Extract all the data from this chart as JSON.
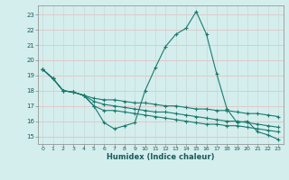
{
  "xlabel": "Humidex (Indice chaleur)",
  "background_color": "#d4eeed",
  "grid_color_major": "#c8a0a0",
  "grid_color_minor": "#c8d8d8",
  "line_color": "#1a7a6e",
  "xlim": [
    -0.5,
    23.5
  ],
  "ylim": [
    14.5,
    23.6
  ],
  "yticks": [
    15,
    16,
    17,
    18,
    19,
    20,
    21,
    22,
    23
  ],
  "xticks": [
    0,
    1,
    2,
    3,
    4,
    5,
    6,
    7,
    8,
    9,
    10,
    11,
    12,
    13,
    14,
    15,
    16,
    17,
    18,
    19,
    20,
    21,
    22,
    23
  ],
  "series": [
    [
      19.4,
      18.8,
      18.0,
      17.9,
      17.7,
      17.0,
      15.9,
      15.5,
      15.7,
      15.9,
      18.0,
      19.5,
      20.9,
      21.7,
      22.1,
      23.2,
      21.7,
      19.1,
      16.8,
      15.9,
      16.0,
      15.3,
      15.1,
      14.8
    ],
    [
      19.4,
      18.8,
      18.0,
      17.9,
      17.7,
      17.0,
      16.7,
      16.7,
      16.6,
      16.5,
      16.4,
      16.3,
      16.2,
      16.1,
      16.0,
      15.9,
      15.8,
      15.8,
      15.7,
      15.7,
      15.6,
      15.5,
      15.4,
      15.3
    ],
    [
      19.4,
      18.8,
      18.0,
      17.9,
      17.7,
      17.3,
      17.1,
      17.0,
      16.9,
      16.8,
      16.7,
      16.6,
      16.6,
      16.5,
      16.4,
      16.3,
      16.2,
      16.1,
      16.0,
      16.0,
      15.9,
      15.8,
      15.7,
      15.6
    ],
    [
      19.4,
      18.8,
      18.0,
      17.9,
      17.7,
      17.5,
      17.4,
      17.4,
      17.3,
      17.2,
      17.2,
      17.1,
      17.0,
      17.0,
      16.9,
      16.8,
      16.8,
      16.7,
      16.7,
      16.6,
      16.5,
      16.5,
      16.4,
      16.3
    ]
  ]
}
